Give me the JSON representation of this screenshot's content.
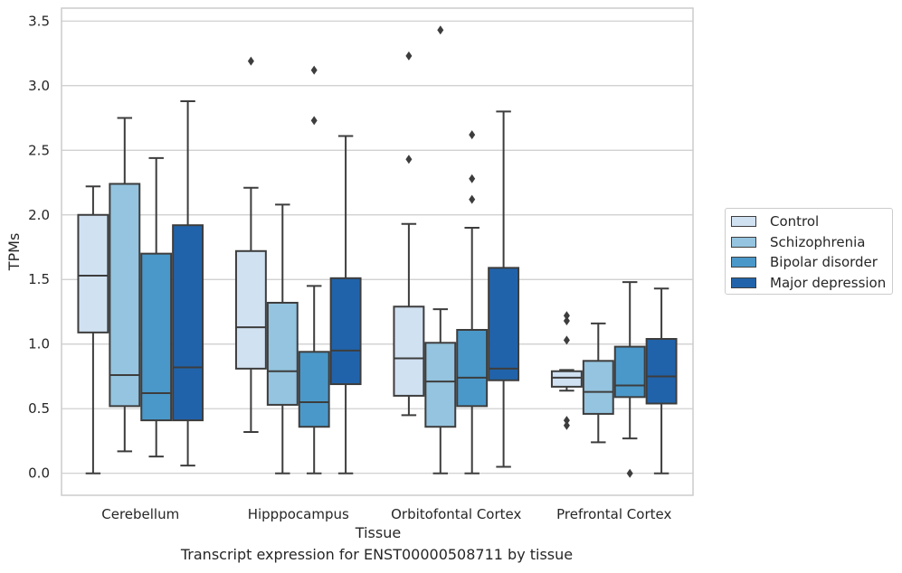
{
  "chart_data": {
    "type": "box",
    "xlabel": "Tissue",
    "ylabel": "TPMs",
    "ylim": [
      -0.17,
      3.6
    ],
    "yticks": [
      "0.0",
      "0.5",
      "1.0",
      "1.5",
      "2.0",
      "2.5",
      "3.0",
      "3.5"
    ],
    "categories": [
      "Cerebellum",
      "Hipppocampus",
      "Orbitofontal Cortex",
      "Prefrontal Cortex"
    ],
    "grid": true,
    "legend_position": "right",
    "series": [
      {
        "name": "Control",
        "color": "#d0e1f2",
        "boxes": [
          {
            "whisker_low": 0.0,
            "q1": 1.09,
            "median": 1.53,
            "q3": 2.0,
            "whisker_high": 2.22,
            "outliers": []
          },
          {
            "whisker_low": 0.32,
            "q1": 0.81,
            "median": 1.13,
            "q3": 1.72,
            "whisker_high": 2.21,
            "outliers": [
              3.19
            ]
          },
          {
            "whisker_low": 0.45,
            "q1": 0.6,
            "median": 0.89,
            "q3": 1.29,
            "whisker_high": 1.93,
            "outliers": [
              2.43,
              3.23
            ]
          },
          {
            "whisker_low": 0.64,
            "q1": 0.67,
            "median": 0.74,
            "q3": 0.79,
            "whisker_high": 0.8,
            "outliers": [
              0.37,
              0.41,
              1.03,
              1.18,
              1.22
            ]
          }
        ]
      },
      {
        "name": "Schizophrenia",
        "color": "#94c4df",
        "boxes": [
          {
            "whisker_low": 0.17,
            "q1": 0.52,
            "median": 0.76,
            "q3": 2.24,
            "whisker_high": 2.75,
            "outliers": []
          },
          {
            "whisker_low": 0.0,
            "q1": 0.53,
            "median": 0.79,
            "q3": 1.32,
            "whisker_high": 2.08,
            "outliers": []
          },
          {
            "whisker_low": 0.0,
            "q1": 0.36,
            "median": 0.71,
            "q3": 1.01,
            "whisker_high": 1.27,
            "outliers": [
              3.43
            ]
          },
          {
            "whisker_low": 0.24,
            "q1": 0.46,
            "median": 0.63,
            "q3": 0.87,
            "whisker_high": 1.16,
            "outliers": []
          }
        ]
      },
      {
        "name": "Bipolar disorder",
        "color": "#4a98c9",
        "boxes": [
          {
            "whisker_low": 0.13,
            "q1": 0.41,
            "median": 0.62,
            "q3": 1.7,
            "whisker_high": 2.44,
            "outliers": []
          },
          {
            "whisker_low": 0.0,
            "q1": 0.36,
            "median": 0.55,
            "q3": 0.94,
            "whisker_high": 1.45,
            "outliers": [
              2.73,
              3.12
            ]
          },
          {
            "whisker_low": 0.0,
            "q1": 0.52,
            "median": 0.74,
            "q3": 1.11,
            "whisker_high": 1.9,
            "outliers": [
              2.12,
              2.28,
              2.62
            ]
          },
          {
            "whisker_low": 0.27,
            "q1": 0.59,
            "median": 0.68,
            "q3": 0.98,
            "whisker_high": 1.48,
            "outliers": [
              0.0
            ]
          }
        ]
      },
      {
        "name": "Major depression",
        "color": "#2163aa",
        "boxes": [
          {
            "whisker_low": 0.06,
            "q1": 0.41,
            "median": 0.82,
            "q3": 1.92,
            "whisker_high": 2.88,
            "outliers": []
          },
          {
            "whisker_low": 0.0,
            "q1": 0.69,
            "median": 0.95,
            "q3": 1.51,
            "whisker_high": 2.61,
            "outliers": []
          },
          {
            "whisker_low": 0.05,
            "q1": 0.72,
            "median": 0.81,
            "q3": 1.59,
            "whisker_high": 2.8,
            "outliers": []
          },
          {
            "whisker_low": 0.0,
            "q1": 0.54,
            "median": 0.75,
            "q3": 1.04,
            "whisker_high": 1.43,
            "outliers": []
          }
        ]
      }
    ]
  },
  "caption": "Transcript expression for ENST00000508711 by tissue"
}
